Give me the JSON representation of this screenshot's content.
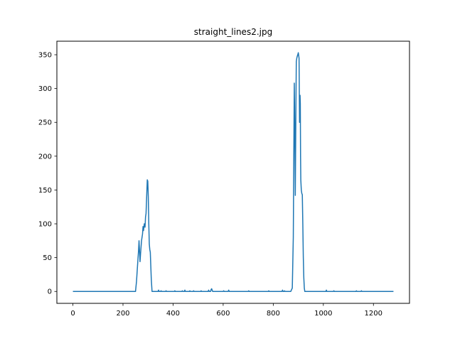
{
  "chart_data": {
    "type": "line",
    "title": "straight_lines2.jpg",
    "xlabel": "",
    "ylabel": "",
    "xlim": [
      -64,
      1344
    ],
    "ylim": [
      -17.6,
      370
    ],
    "xticks": [
      0,
      200,
      400,
      600,
      800,
      1000,
      1200
    ],
    "yticks": [
      0,
      50,
      100,
      150,
      200,
      250,
      300,
      350
    ],
    "grid": false,
    "legend": "none",
    "series": [
      {
        "color": "#1f77b4",
        "x": [
          0,
          250,
          254,
          258,
          262,
          264,
          266,
          268,
          270,
          274,
          278,
          280,
          282,
          285,
          288,
          290,
          292,
          295,
          297,
          299,
          301,
          303,
          305,
          307,
          309,
          311,
          313,
          316,
          340,
          342,
          344,
          350,
          352,
          354,
          370,
          372,
          374,
          405,
          407,
          409,
          435,
          437,
          439,
          445,
          447,
          449,
          465,
          467,
          469,
          480,
          482,
          484,
          510,
          512,
          514,
          540,
          542,
          544,
          550,
          552,
          554,
          556,
          558,
          600,
          602,
          604,
          620,
          622,
          624,
          700,
          702,
          704,
          780,
          782,
          784,
          835,
          837,
          839,
          843,
          845,
          847,
          860,
          870,
          876,
          880,
          882,
          884,
          886,
          888,
          890,
          892,
          894,
          896,
          898,
          900,
          903,
          905,
          907,
          908,
          909,
          910,
          912,
          914,
          916,
          918,
          920,
          922,
          924,
          926,
          930,
          1010,
          1012,
          1014,
          1040,
          1042,
          1044,
          1130,
          1132,
          1134,
          1150,
          1152,
          1154,
          1280
        ],
        "y": [
          0,
          0,
          15,
          38,
          60,
          75,
          60,
          44,
          55,
          75,
          85,
          96,
          90,
          100,
          95,
          110,
          115,
          145,
          165,
          163,
          140,
          100,
          70,
          62,
          58,
          38,
          18,
          0,
          0,
          2,
          0,
          0,
          1,
          0,
          0,
          1,
          0,
          0,
          1,
          0,
          0,
          1,
          0,
          0,
          2,
          0,
          0,
          1,
          0,
          0,
          1,
          0,
          0,
          1,
          0,
          0,
          2,
          0,
          0,
          3,
          4,
          2,
          0,
          0,
          1,
          0,
          0,
          2,
          0,
          0,
          1,
          0,
          0,
          1,
          0,
          0,
          2,
          0,
          0,
          1,
          0,
          0,
          0,
          5,
          80,
          200,
          308,
          240,
          142,
          250,
          340,
          345,
          348,
          350,
          353,
          345,
          250,
          290,
          278,
          200,
          165,
          150,
          145,
          143,
          100,
          50,
          20,
          5,
          0,
          0,
          0,
          2,
          0,
          0,
          1,
          0,
          0,
          1,
          0,
          0,
          1,
          0,
          0
        ]
      }
    ]
  }
}
